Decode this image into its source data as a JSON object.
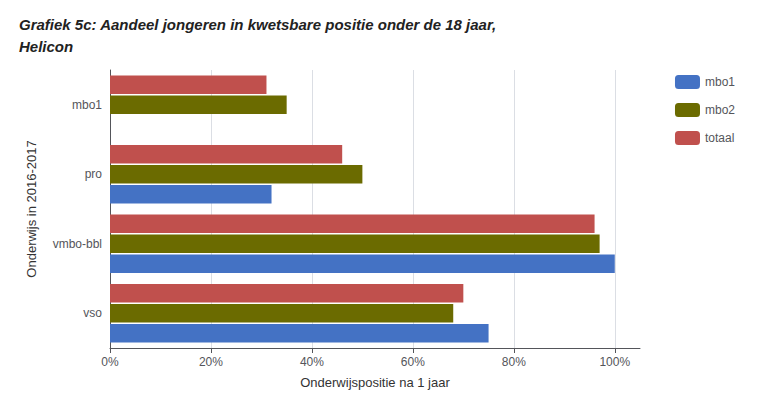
{
  "chart_data": {
    "type": "bar",
    "orientation": "horizontal",
    "title": "Grafiek 5c: Aandeel jongeren in kwetsbare positie onder de 18 jaar,\nHelicon",
    "x_label": "Onderwijspositie na 1 jaar",
    "y_label": "Onderwijs in 2016-2017",
    "categories": [
      "vso",
      "vmbo-bbl",
      "pro",
      "mbo1"
    ],
    "series": [
      {
        "name": "mbo1",
        "color": "#4472C4",
        "values": [
          75,
          100,
          32,
          null
        ]
      },
      {
        "name": "mbo2",
        "color": "#6B6B00",
        "values": [
          68,
          97,
          50,
          35
        ]
      },
      {
        "name": "totaal",
        "color": "#C0504D",
        "values": [
          70,
          96,
          46,
          31
        ]
      }
    ],
    "xlim": [
      0,
      105
    ],
    "xticks": [
      {
        "value": 0,
        "label": "0%"
      },
      {
        "value": 20,
        "label": "20%"
      },
      {
        "value": 40,
        "label": "40%"
      },
      {
        "value": 60,
        "label": "60%"
      },
      {
        "value": 80,
        "label": "80%"
      },
      {
        "value": 100,
        "label": "100%"
      }
    ],
    "grid": true,
    "legend": "right"
  }
}
